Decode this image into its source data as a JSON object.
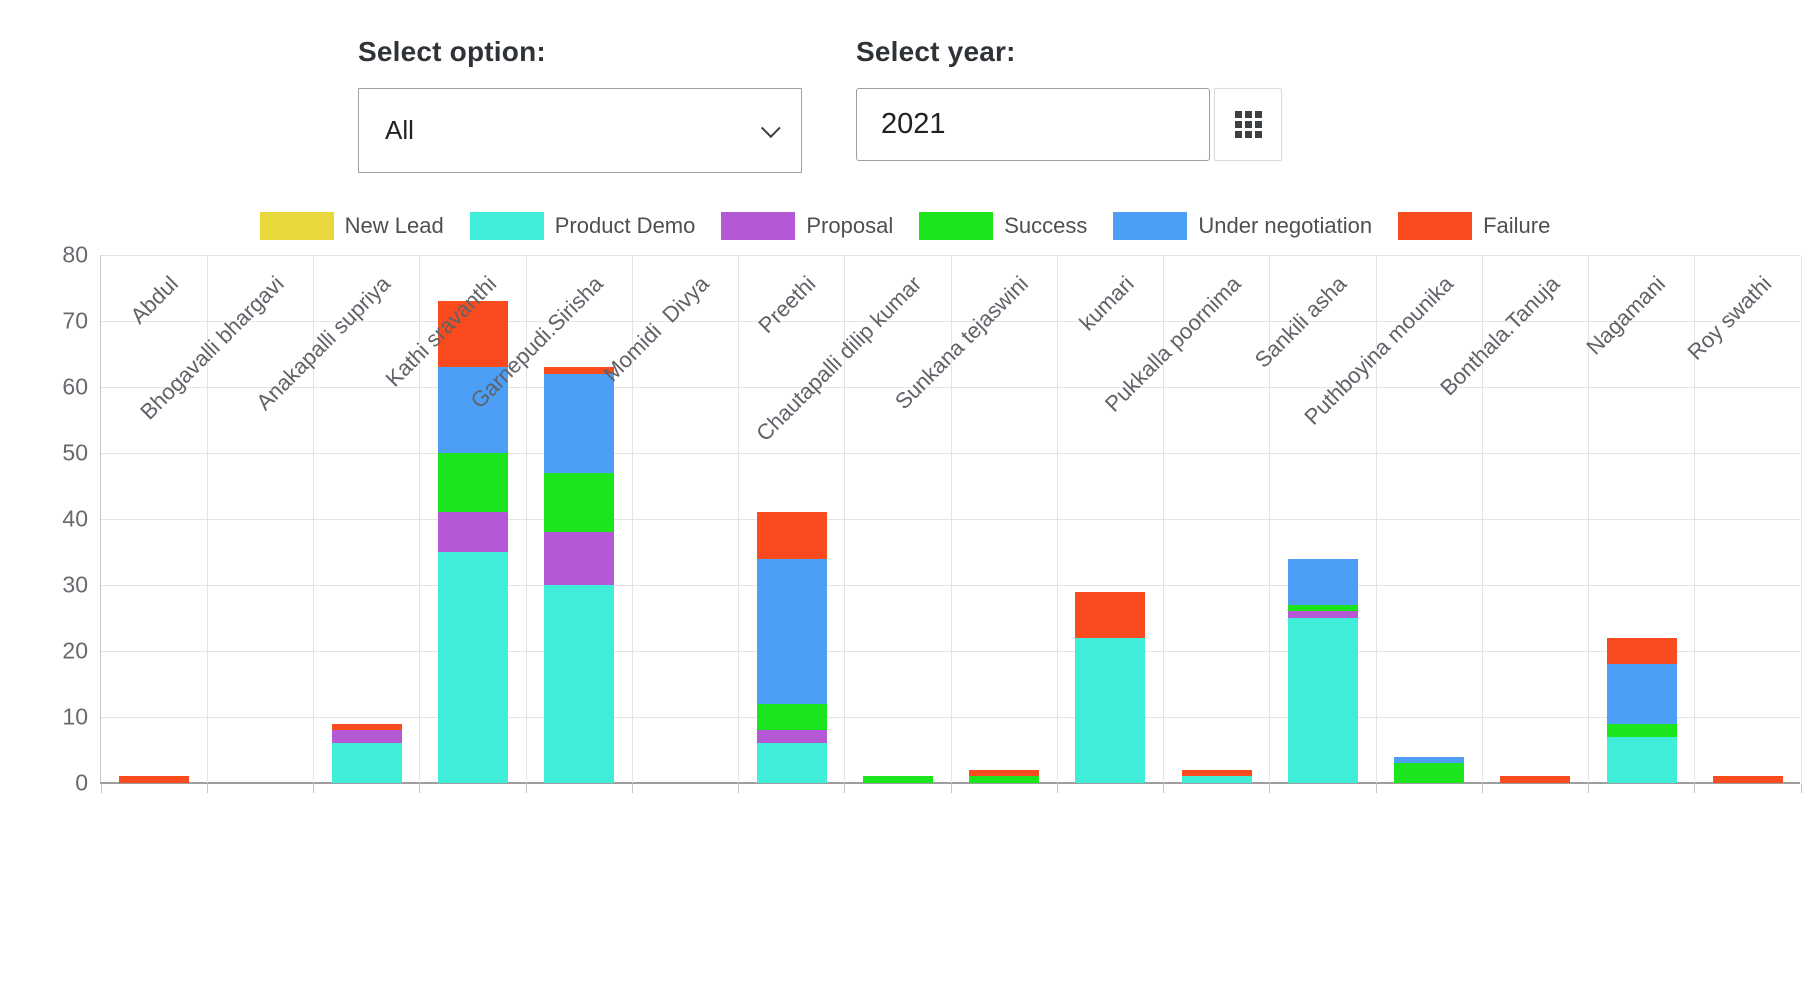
{
  "controls": {
    "option_label": "Select option:",
    "option_value": "All",
    "year_label": "Select year:",
    "year_value": "2021"
  },
  "chart_data": {
    "type": "bar",
    "stacked": true,
    "legend_position": "top",
    "grid": true,
    "ylim": [
      0,
      80
    ],
    "ytick_step": 10,
    "categories": [
      "Abdul",
      "Bhogavalli bhargavi",
      "Anakapalli supriya",
      "Kathi sravanthi",
      "Garnepudi.Sirisha",
      "Momidi  Divya",
      "Preethi",
      "Chautapalli dilip kumar",
      "Sunkana tejaswini",
      "kumari",
      "Pukkalla poornima",
      "Sankili asha",
      "Puthboyina mounika",
      "Bonthala.Tanuja",
      "Nagamani",
      "Roy swathi"
    ],
    "series": [
      {
        "name": "New Lead",
        "color": "#e9d83c",
        "values": [
          0,
          0,
          0,
          0,
          0,
          0,
          0,
          0,
          0,
          0,
          0,
          0,
          0,
          0,
          0,
          0
        ]
      },
      {
        "name": "Product Demo",
        "color": "#3fedd8",
        "values": [
          0,
          0,
          6,
          35,
          30,
          0,
          6,
          0,
          0,
          22,
          1,
          25,
          0,
          0,
          7,
          0
        ]
      },
      {
        "name": "Proposal",
        "color": "#b558d6",
        "values": [
          0,
          0,
          2,
          6,
          8,
          0,
          2,
          0,
          0,
          0,
          0,
          1,
          0,
          0,
          0,
          0
        ]
      },
      {
        "name": "Success",
        "color": "#1de51d",
        "values": [
          0,
          0,
          0,
          9,
          9,
          0,
          4,
          1,
          1,
          0,
          0,
          1,
          3,
          0,
          2,
          0
        ]
      },
      {
        "name": "Under negotiation",
        "color": "#4d9ef7",
        "values": [
          0,
          0,
          0,
          13,
          15,
          0,
          22,
          0,
          0,
          0,
          0,
          7,
          1,
          0,
          9,
          0
        ]
      },
      {
        "name": "Failure",
        "color": "#f94b1d",
        "values": [
          1,
          0,
          1,
          10,
          1,
          0,
          7,
          0,
          1,
          7,
          1,
          0,
          0,
          1,
          4,
          1
        ]
      }
    ]
  }
}
